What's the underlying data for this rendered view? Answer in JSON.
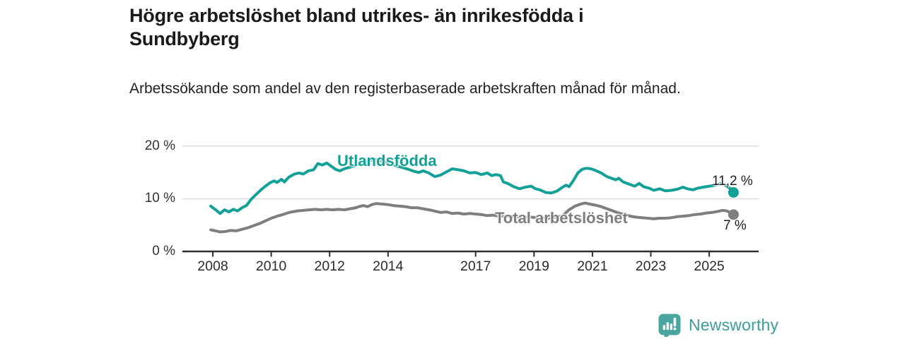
{
  "header": {
    "title": "Högre arbetslöshet bland utrikes- än inrikesfödda i Sundbyberg",
    "subtitle": "Arbetssökande som andel av den registerbaserade arbetskraften månad för månad."
  },
  "footer": {
    "brand": "Newsworthy",
    "logo_icon": "bar-chart-speech-bubble-icon"
  },
  "colors": {
    "series1": "#13a197",
    "series2": "#7e7e7e",
    "grid": "#dcdcdc",
    "axis": "#2f2f2f",
    "title_text": "#1a1a1a",
    "tick_text": "#2b2b2b",
    "brand_teal": "#4aa5a0"
  },
  "chart_data": {
    "type": "line",
    "title": "Högre arbetslöshet bland utrikes- än inrikesfödda i Sundbyberg",
    "subtitle": "Arbetssökande som andel av den registerbaserade arbetskraften månad för månad.",
    "unit": "%",
    "grid": true,
    "legend_position": "inline-labels",
    "xlim": [
      2006.96,
      2026.69
    ],
    "ylim": [
      0,
      22.3
    ],
    "yticks": [
      {
        "v": 0,
        "label": "0 %"
      },
      {
        "v": 10,
        "label": "10 %"
      },
      {
        "v": 20,
        "label": "20 %"
      }
    ],
    "gridlines": [
      10,
      20
    ],
    "xticks": [
      {
        "v": 2008,
        "label": "2008"
      },
      {
        "v": 2010,
        "label": "2010"
      },
      {
        "v": 2012,
        "label": "2012"
      },
      {
        "v": 2014,
        "label": "2014"
      },
      {
        "v": 2017,
        "label": "2017"
      },
      {
        "v": 2019,
        "label": "2019"
      },
      {
        "v": 2021,
        "label": "2021"
      },
      {
        "v": 2023,
        "label": "2023"
      },
      {
        "v": 2025,
        "label": "2025"
      }
    ],
    "series": [
      {
        "name": "Utlandsfödda",
        "color": "#13a197",
        "end_label": "11,2 %",
        "end_value": 11.2,
        "points": [
          [
            2007.93,
            8.6
          ],
          [
            2008.1,
            7.9
          ],
          [
            2008.25,
            7.2
          ],
          [
            2008.4,
            7.9
          ],
          [
            2008.55,
            7.5
          ],
          [
            2008.7,
            8.0
          ],
          [
            2008.85,
            7.7
          ],
          [
            2009.0,
            8.3
          ],
          [
            2009.15,
            8.7
          ],
          [
            2009.33,
            10.0
          ],
          [
            2009.5,
            10.9
          ],
          [
            2009.65,
            11.7
          ],
          [
            2009.8,
            12.4
          ],
          [
            2009.95,
            13.0
          ],
          [
            2010.1,
            13.4
          ],
          [
            2010.2,
            13.1
          ],
          [
            2010.35,
            13.7
          ],
          [
            2010.45,
            13.2
          ],
          [
            2010.6,
            14.1
          ],
          [
            2010.8,
            14.7
          ],
          [
            2010.95,
            14.9
          ],
          [
            2011.1,
            14.7
          ],
          [
            2011.27,
            15.3
          ],
          [
            2011.45,
            15.5
          ],
          [
            2011.6,
            16.7
          ],
          [
            2011.75,
            16.4
          ],
          [
            2011.9,
            16.8
          ],
          [
            2012.05,
            16.2
          ],
          [
            2012.2,
            15.6
          ],
          [
            2012.35,
            15.3
          ],
          [
            2012.5,
            15.7
          ],
          [
            2012.7,
            16.0
          ],
          [
            2012.9,
            16.4
          ],
          [
            2013.1,
            16.8
          ],
          [
            2013.3,
            17.1
          ],
          [
            2013.55,
            17.5
          ],
          [
            2013.75,
            17.2
          ],
          [
            2013.95,
            16.8
          ],
          [
            2014.2,
            16.4
          ],
          [
            2014.45,
            16.0
          ],
          [
            2014.7,
            15.6
          ],
          [
            2014.9,
            15.2
          ],
          [
            2015.05,
            15.0
          ],
          [
            2015.2,
            15.3
          ],
          [
            2015.4,
            14.9
          ],
          [
            2015.6,
            14.2
          ],
          [
            2015.8,
            14.5
          ],
          [
            2016.0,
            15.1
          ],
          [
            2016.2,
            15.7
          ],
          [
            2016.4,
            15.5
          ],
          [
            2016.6,
            15.3
          ],
          [
            2016.8,
            14.9
          ],
          [
            2017.0,
            15.0
          ],
          [
            2017.2,
            14.6
          ],
          [
            2017.4,
            14.9
          ],
          [
            2017.55,
            14.4
          ],
          [
            2017.7,
            14.6
          ],
          [
            2017.85,
            14.4
          ],
          [
            2017.95,
            13.2
          ],
          [
            2018.1,
            12.9
          ],
          [
            2018.3,
            12.3
          ],
          [
            2018.5,
            11.9
          ],
          [
            2018.7,
            12.2
          ],
          [
            2018.9,
            12.4
          ],
          [
            2019.05,
            11.9
          ],
          [
            2019.2,
            11.7
          ],
          [
            2019.4,
            11.2
          ],
          [
            2019.6,
            11.1
          ],
          [
            2019.8,
            11.5
          ],
          [
            2019.95,
            12.1
          ],
          [
            2020.1,
            12.6
          ],
          [
            2020.2,
            12.3
          ],
          [
            2020.35,
            13.5
          ],
          [
            2020.5,
            14.9
          ],
          [
            2020.65,
            15.6
          ],
          [
            2020.8,
            15.8
          ],
          [
            2020.95,
            15.7
          ],
          [
            2021.1,
            15.4
          ],
          [
            2021.3,
            14.9
          ],
          [
            2021.5,
            14.2
          ],
          [
            2021.65,
            13.9
          ],
          [
            2021.8,
            13.6
          ],
          [
            2021.9,
            13.9
          ],
          [
            2022.05,
            13.2
          ],
          [
            2022.25,
            12.8
          ],
          [
            2022.45,
            12.4
          ],
          [
            2022.6,
            12.9
          ],
          [
            2022.75,
            12.3
          ],
          [
            2022.95,
            12.0
          ],
          [
            2023.1,
            11.6
          ],
          [
            2023.3,
            11.9
          ],
          [
            2023.5,
            11.5
          ],
          [
            2023.7,
            11.6
          ],
          [
            2023.9,
            11.8
          ],
          [
            2024.1,
            12.2
          ],
          [
            2024.25,
            11.9
          ],
          [
            2024.45,
            11.7
          ],
          [
            2024.6,
            12.0
          ],
          [
            2024.8,
            12.2
          ],
          [
            2025.0,
            12.4
          ],
          [
            2025.2,
            12.6
          ],
          [
            2025.4,
            12.9
          ],
          [
            2025.55,
            12.6
          ],
          [
            2025.7,
            12.0
          ],
          [
            2025.83,
            11.2
          ]
        ]
      },
      {
        "name": "Total arbetslöshet",
        "color": "#7e7e7e",
        "end_label": "7 %",
        "end_value": 7,
        "points": [
          [
            2007.93,
            4.1
          ],
          [
            2008.1,
            3.9
          ],
          [
            2008.25,
            3.7
          ],
          [
            2008.45,
            3.8
          ],
          [
            2008.6,
            4.0
          ],
          [
            2008.8,
            3.9
          ],
          [
            2009.0,
            4.2
          ],
          [
            2009.2,
            4.5
          ],
          [
            2009.4,
            4.9
          ],
          [
            2009.6,
            5.3
          ],
          [
            2009.8,
            5.8
          ],
          [
            2010.0,
            6.3
          ],
          [
            2010.2,
            6.7
          ],
          [
            2010.4,
            7.0
          ],
          [
            2010.55,
            7.3
          ],
          [
            2010.7,
            7.5
          ],
          [
            2010.9,
            7.7
          ],
          [
            2011.1,
            7.8
          ],
          [
            2011.3,
            7.9
          ],
          [
            2011.5,
            8.0
          ],
          [
            2011.7,
            7.9
          ],
          [
            2011.9,
            8.0
          ],
          [
            2012.1,
            7.9
          ],
          [
            2012.3,
            8.0
          ],
          [
            2012.5,
            7.9
          ],
          [
            2012.7,
            8.1
          ],
          [
            2012.9,
            8.3
          ],
          [
            2013.0,
            8.5
          ],
          [
            2013.15,
            8.7
          ],
          [
            2013.3,
            8.5
          ],
          [
            2013.45,
            8.9
          ],
          [
            2013.6,
            9.1
          ],
          [
            2013.8,
            9.0
          ],
          [
            2014.0,
            8.9
          ],
          [
            2014.2,
            8.7
          ],
          [
            2014.4,
            8.6
          ],
          [
            2014.6,
            8.5
          ],
          [
            2014.8,
            8.3
          ],
          [
            2015.0,
            8.3
          ],
          [
            2015.2,
            8.1
          ],
          [
            2015.5,
            7.8
          ],
          [
            2015.8,
            7.4
          ],
          [
            2016.0,
            7.5
          ],
          [
            2016.2,
            7.2
          ],
          [
            2016.4,
            7.3
          ],
          [
            2016.6,
            7.1
          ],
          [
            2016.8,
            7.2
          ],
          [
            2017.0,
            7.1
          ],
          [
            2017.2,
            7.0
          ],
          [
            2017.4,
            6.8
          ],
          [
            2017.6,
            6.9
          ],
          [
            2017.8,
            6.7
          ],
          [
            2018.0,
            6.7
          ],
          [
            2018.3,
            6.6
          ],
          [
            2018.6,
            6.5
          ],
          [
            2018.9,
            6.5
          ],
          [
            2019.2,
            6.4
          ],
          [
            2019.5,
            6.3
          ],
          [
            2019.8,
            6.5
          ],
          [
            2020.0,
            6.9
          ],
          [
            2020.2,
            7.9
          ],
          [
            2020.4,
            8.6
          ],
          [
            2020.6,
            9.0
          ],
          [
            2020.75,
            9.2
          ],
          [
            2020.9,
            9.0
          ],
          [
            2021.1,
            8.8
          ],
          [
            2021.3,
            8.5
          ],
          [
            2021.5,
            8.1
          ],
          [
            2021.7,
            7.7
          ],
          [
            2021.9,
            7.3
          ],
          [
            2022.1,
            7.0
          ],
          [
            2022.3,
            6.7
          ],
          [
            2022.5,
            6.5
          ],
          [
            2022.7,
            6.4
          ],
          [
            2022.9,
            6.3
          ],
          [
            2023.1,
            6.2
          ],
          [
            2023.3,
            6.3
          ],
          [
            2023.5,
            6.3
          ],
          [
            2023.7,
            6.4
          ],
          [
            2023.9,
            6.6
          ],
          [
            2024.1,
            6.7
          ],
          [
            2024.3,
            6.8
          ],
          [
            2024.5,
            7.0
          ],
          [
            2024.7,
            7.1
          ],
          [
            2024.9,
            7.3
          ],
          [
            2025.1,
            7.4
          ],
          [
            2025.3,
            7.6
          ],
          [
            2025.45,
            7.8
          ],
          [
            2025.6,
            7.7
          ],
          [
            2025.83,
            7.0
          ]
        ]
      }
    ]
  }
}
